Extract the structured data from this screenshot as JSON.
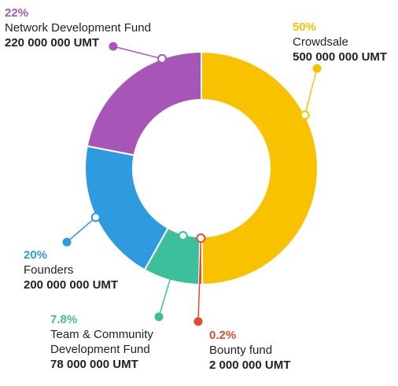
{
  "chart_data": {
    "type": "pie",
    "variant": "donut",
    "slices": [
      {
        "percent": "50%",
        "name": "Crowdsale",
        "amount": "500 000 000 UMT",
        "value": 50,
        "color": "#F9C200"
      },
      {
        "percent": "0.2%",
        "name": "Bounty fund",
        "amount": "2 000 000 UMT",
        "value": 0.2,
        "color": "#E64A2E"
      },
      {
        "percent": "7.8%",
        "name": "Team & Community Development Fund",
        "name_lines": [
          "Team & Community",
          "Development Fund"
        ],
        "amount": "78 000 000 UMT",
        "value": 7.8,
        "color": "#3CBF9A"
      },
      {
        "percent": "20%",
        "name": "Founders",
        "amount": "200 000 000 UMT",
        "value": 20,
        "color": "#2E9BE0"
      },
      {
        "percent": "22%",
        "name": "Network Development Fund",
        "amount": "220 000 000 UMT",
        "value": 22,
        "color": "#A855B8"
      }
    ]
  }
}
